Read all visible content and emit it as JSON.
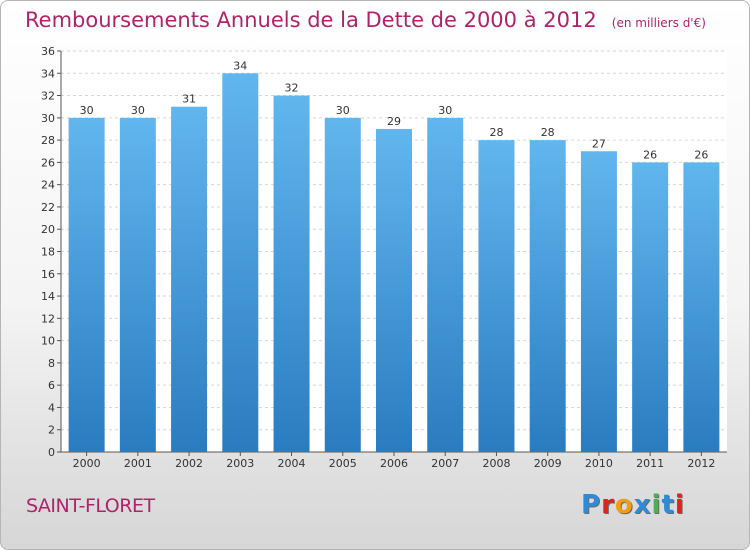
{
  "title": "Remboursements Annuels de la Dette de 2000 à 2012",
  "unit": "(en milliers d'€)",
  "commune": "SAINT-FLORET",
  "logo": {
    "letters": [
      "P",
      "r",
      "o",
      "x",
      "i",
      "t",
      "i"
    ],
    "colors": [
      "#2e8bd8",
      "#e2231a",
      "#f39c12",
      "#2e8bd8",
      "#4caf50",
      "#2e8bd8",
      "#e2231a"
    ]
  },
  "colors": {
    "title": "#b0236a",
    "bar_top": "#62b6ee",
    "bar_bottom": "#2a7cc0",
    "grid": "#d6d6d6"
  },
  "chart_data": {
    "type": "bar",
    "title": "Remboursements Annuels de la Dette de 2000 à 2012",
    "xlabel": "",
    "ylabel": "",
    "categories": [
      "2000",
      "2001",
      "2002",
      "2003",
      "2004",
      "2005",
      "2006",
      "2007",
      "2008",
      "2009",
      "2010",
      "2011",
      "2012"
    ],
    "values": [
      30,
      30,
      31,
      34,
      32,
      30,
      29,
      30,
      28,
      28,
      27,
      26,
      26
    ],
    "ylim": [
      0,
      36
    ],
    "yticks": [
      0,
      2,
      4,
      6,
      8,
      10,
      12,
      14,
      16,
      18,
      20,
      22,
      24,
      26,
      28,
      30,
      32,
      34,
      36
    ],
    "grid": true,
    "data_labels": true
  }
}
